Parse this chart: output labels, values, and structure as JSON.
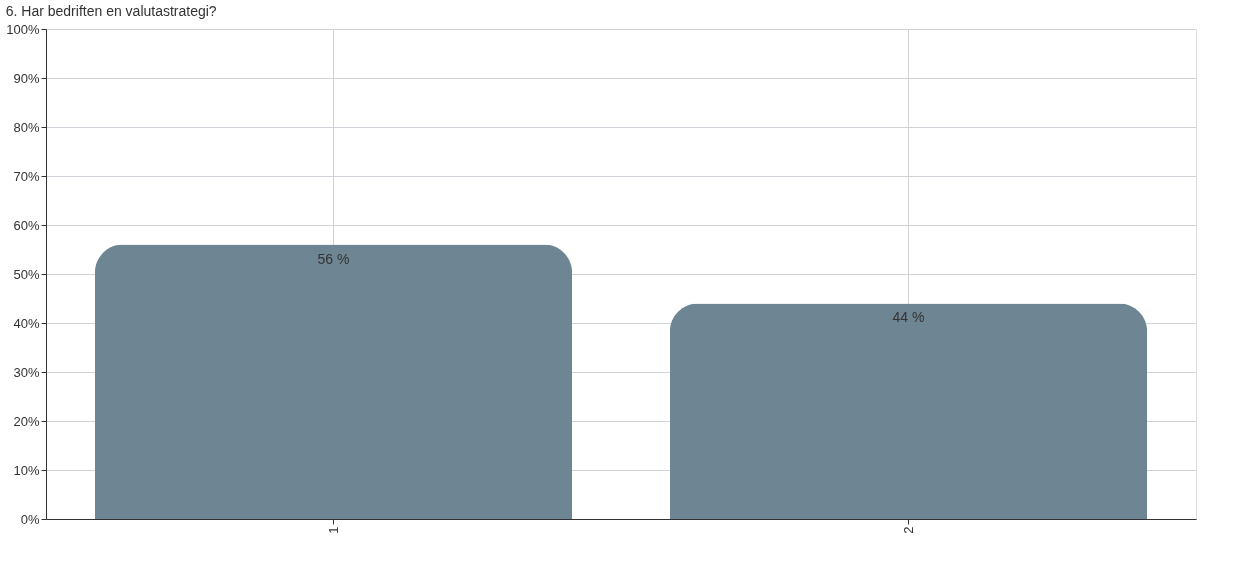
{
  "chart_data": {
    "type": "bar",
    "title": "6. Har bedriften en valutastrategi?",
    "categories": [
      "1",
      "2"
    ],
    "values": [
      56,
      44
    ],
    "value_labels": [
      "56 %",
      "44 %"
    ],
    "color": "#6e8593",
    "ylim": [
      0,
      100
    ],
    "yticks": [
      {
        "value": 0,
        "label": "0%"
      },
      {
        "value": 10,
        "label": "10%"
      },
      {
        "value": 20,
        "label": "20%"
      },
      {
        "value": 30,
        "label": "30%"
      },
      {
        "value": 40,
        "label": "40%"
      },
      {
        "value": 50,
        "label": "50%"
      },
      {
        "value": 60,
        "label": "60%"
      },
      {
        "value": 70,
        "label": "70%"
      },
      {
        "value": 80,
        "label": "80%"
      },
      {
        "value": 90,
        "label": "90%"
      },
      {
        "value": 100,
        "label": "100%"
      }
    ],
    "grid": true
  }
}
